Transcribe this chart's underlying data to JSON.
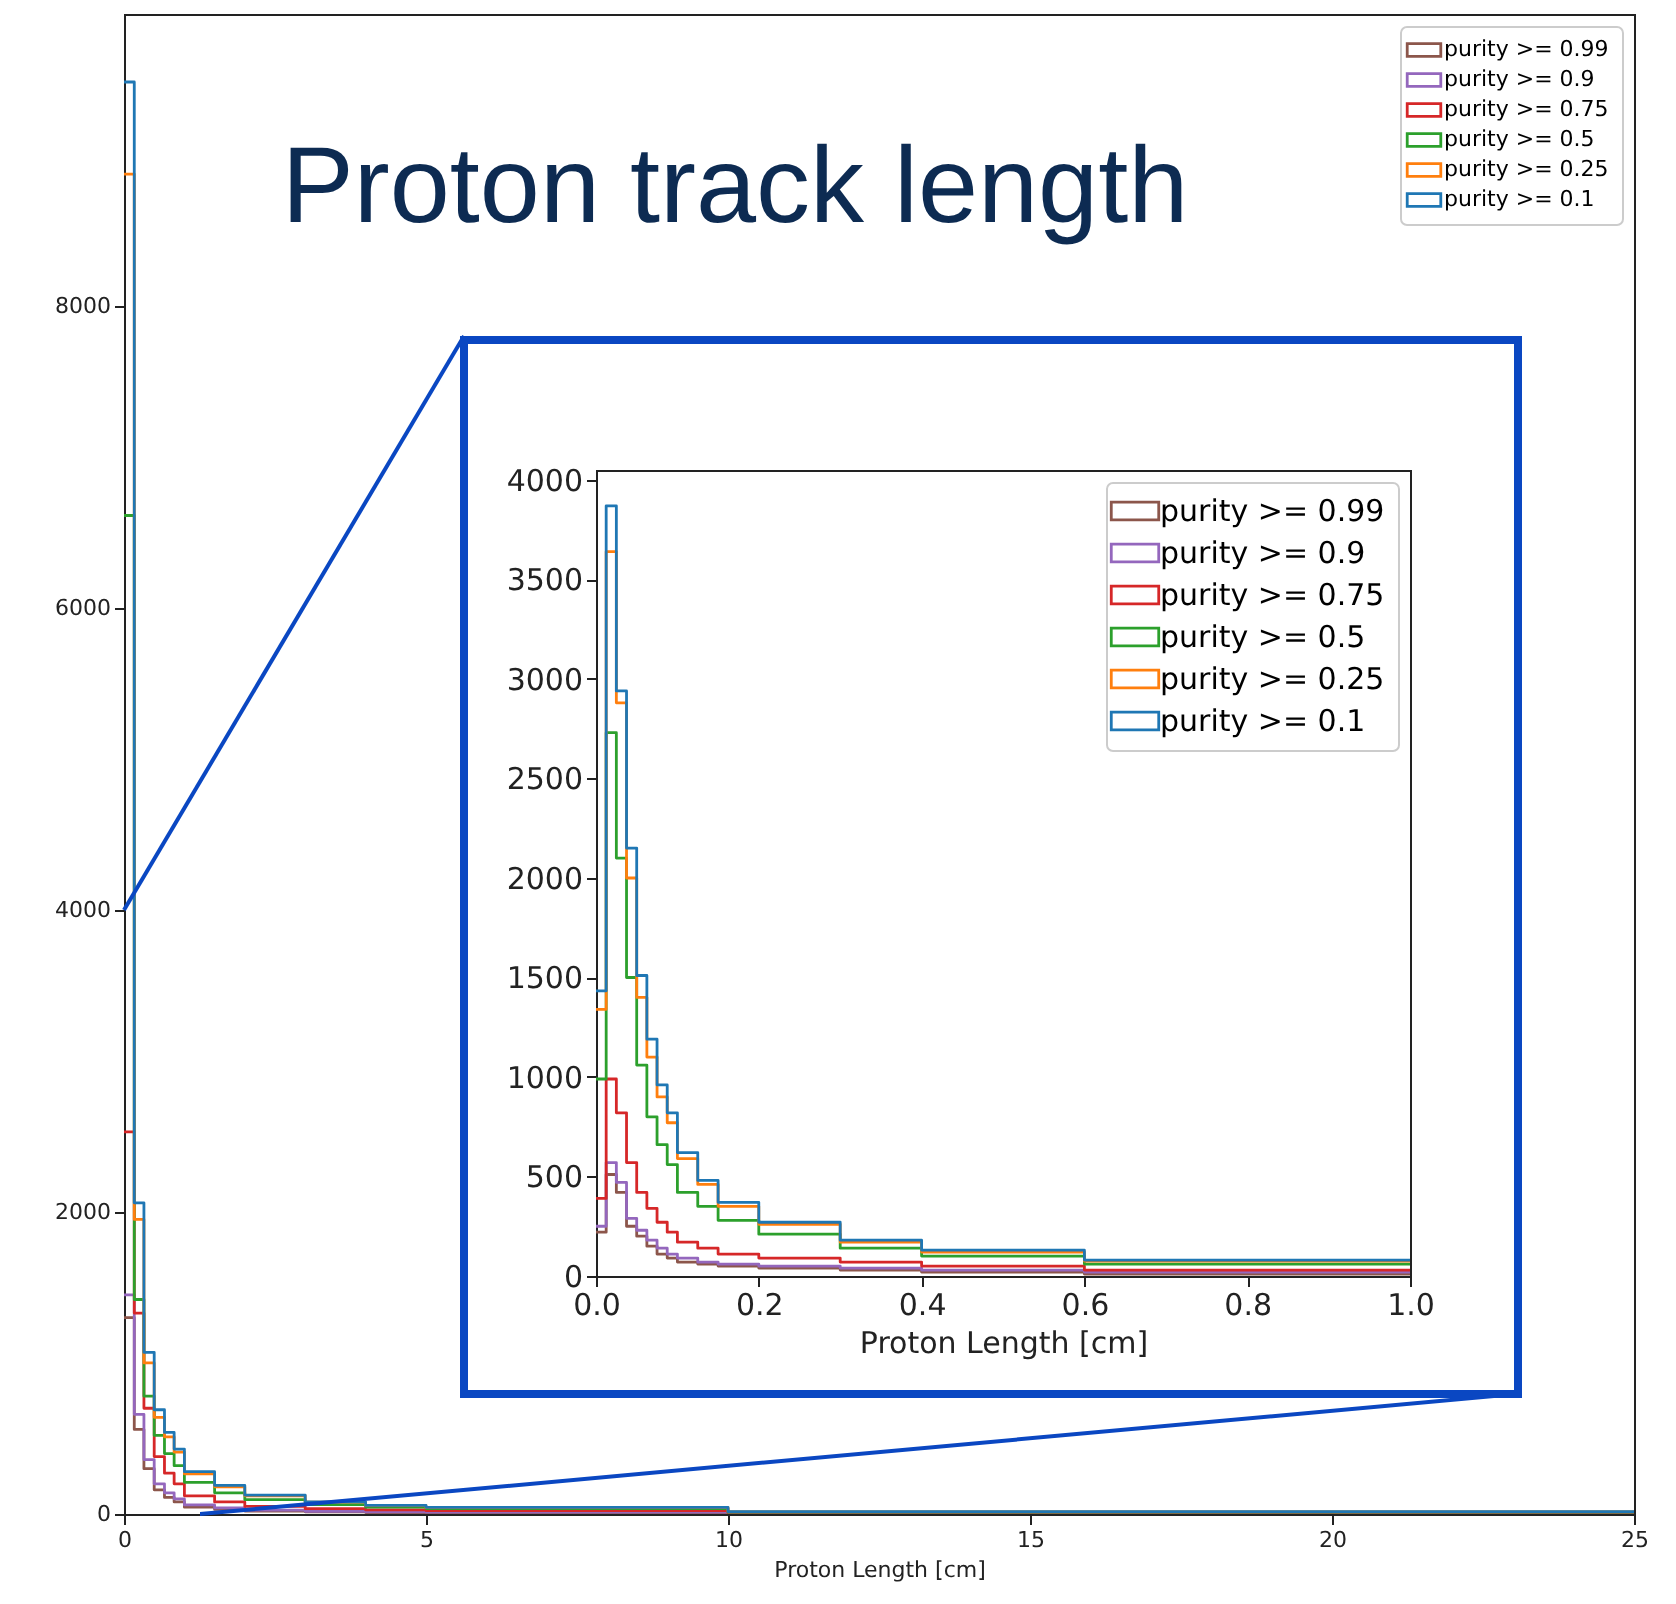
{
  "chart_data": [
    {
      "type": "histogram",
      "title": "Proton track length",
      "xlabel": "Proton Length [cm]",
      "xlim": [
        0,
        25
      ],
      "ylim": [
        0,
        9930
      ],
      "xticks": [
        0,
        5,
        10,
        15,
        20,
        25
      ],
      "yticks": [
        0,
        2000,
        4000,
        6000,
        8000
      ],
      "legend": "top right",
      "bins": [
        0,
        0.17,
        0.33,
        0.5,
        0.67,
        0.83,
        1,
        1.5,
        2,
        3,
        4,
        5,
        10,
        25
      ],
      "series": [
        {
          "name": "purity >= 0.99",
          "color": "#8c564b",
          "values": [
            1300,
            560,
            300,
            160,
            110,
            80,
            45,
            30,
            20,
            15,
            10,
            10,
            5
          ]
        },
        {
          "name": "purity >= 0.9",
          "color": "#9467bd",
          "values": [
            1450,
            660,
            360,
            200,
            140,
            100,
            60,
            40,
            25,
            18,
            14,
            12,
            5
          ]
        },
        {
          "name": "purity >= 0.75",
          "color": "#d62728",
          "values": [
            2530,
            1330,
            700,
            380,
            270,
            200,
            120,
            80,
            50,
            35,
            27,
            22,
            8
          ]
        },
        {
          "name": "purity >= 0.5",
          "color": "#2ca02c",
          "values": [
            6610,
            1420,
            780,
            520,
            400,
            320,
            210,
            140,
            95,
            62,
            45,
            36,
            12
          ]
        },
        {
          "name": "purity >= 0.25",
          "color": "#ff7f0e",
          "values": [
            8870,
            1950,
            1000,
            640,
            510,
            410,
            265,
            180,
            120,
            78,
            55,
            42,
            14
          ]
        },
        {
          "name": "purity >= 0.1",
          "color": "#1f77b4",
          "values": [
            9480,
            2060,
            1070,
            690,
            540,
            430,
            280,
            190,
            125,
            80,
            57,
            44,
            15
          ]
        }
      ]
    },
    {
      "type": "histogram",
      "xlabel": "Proton Length [cm]",
      "xlim": [
        0,
        1
      ],
      "ylim": [
        0,
        4050
      ],
      "xticks": [
        {
          "value": 0,
          "label": "0.0"
        },
        0.2,
        0.4,
        0.6,
        0.8,
        {
          "value": 1,
          "label": "1.0"
        }
      ],
      "yticks": [
        0,
        500,
        1000,
        1500,
        2000,
        2500,
        3000,
        3500,
        4000
      ],
      "legend": "top right",
      "bins": [
        0,
        0.0125,
        0.025,
        0.0375,
        0.05,
        0.0625,
        0.075,
        0.0875,
        0.1,
        0.125,
        0.15,
        0.2,
        0.3,
        0.4,
        0.6,
        1
      ],
      "series": [
        {
          "name": "purity >= 0.99",
          "color": "#8c564b",
          "values": [
            220,
            510,
            420,
            250,
            200,
            150,
            110,
            90,
            70,
            60,
            50,
            40,
            30,
            20,
            10
          ]
        },
        {
          "name": "purity >= 0.9",
          "color": "#9467bd",
          "values": [
            250,
            570,
            470,
            290,
            230,
            180,
            140,
            110,
            90,
            70,
            60,
            50,
            40,
            30,
            20
          ]
        },
        {
          "name": "purity >= 0.75",
          "color": "#d62728",
          "values": [
            390,
            990,
            820,
            570,
            420,
            340,
            270,
            220,
            170,
            140,
            110,
            90,
            70,
            50,
            30
          ]
        },
        {
          "name": "purity >= 0.5",
          "color": "#2ca02c",
          "values": [
            990,
            2730,
            2100,
            1500,
            1060,
            800,
            660,
            560,
            420,
            350,
            280,
            210,
            140,
            100,
            60
          ]
        },
        {
          "name": "purity >= 0.25",
          "color": "#ff7f0e",
          "values": [
            1340,
            3640,
            2880,
            2000,
            1400,
            1100,
            900,
            770,
            590,
            460,
            350,
            260,
            170,
            120,
            75
          ]
        },
        {
          "name": "purity >= 0.1",
          "color": "#1f77b4",
          "values": [
            1433,
            3870,
            2940,
            2150,
            1510,
            1190,
            960,
            820,
            620,
            480,
            370,
            270,
            180,
            130,
            80
          ]
        }
      ]
    }
  ]
}
